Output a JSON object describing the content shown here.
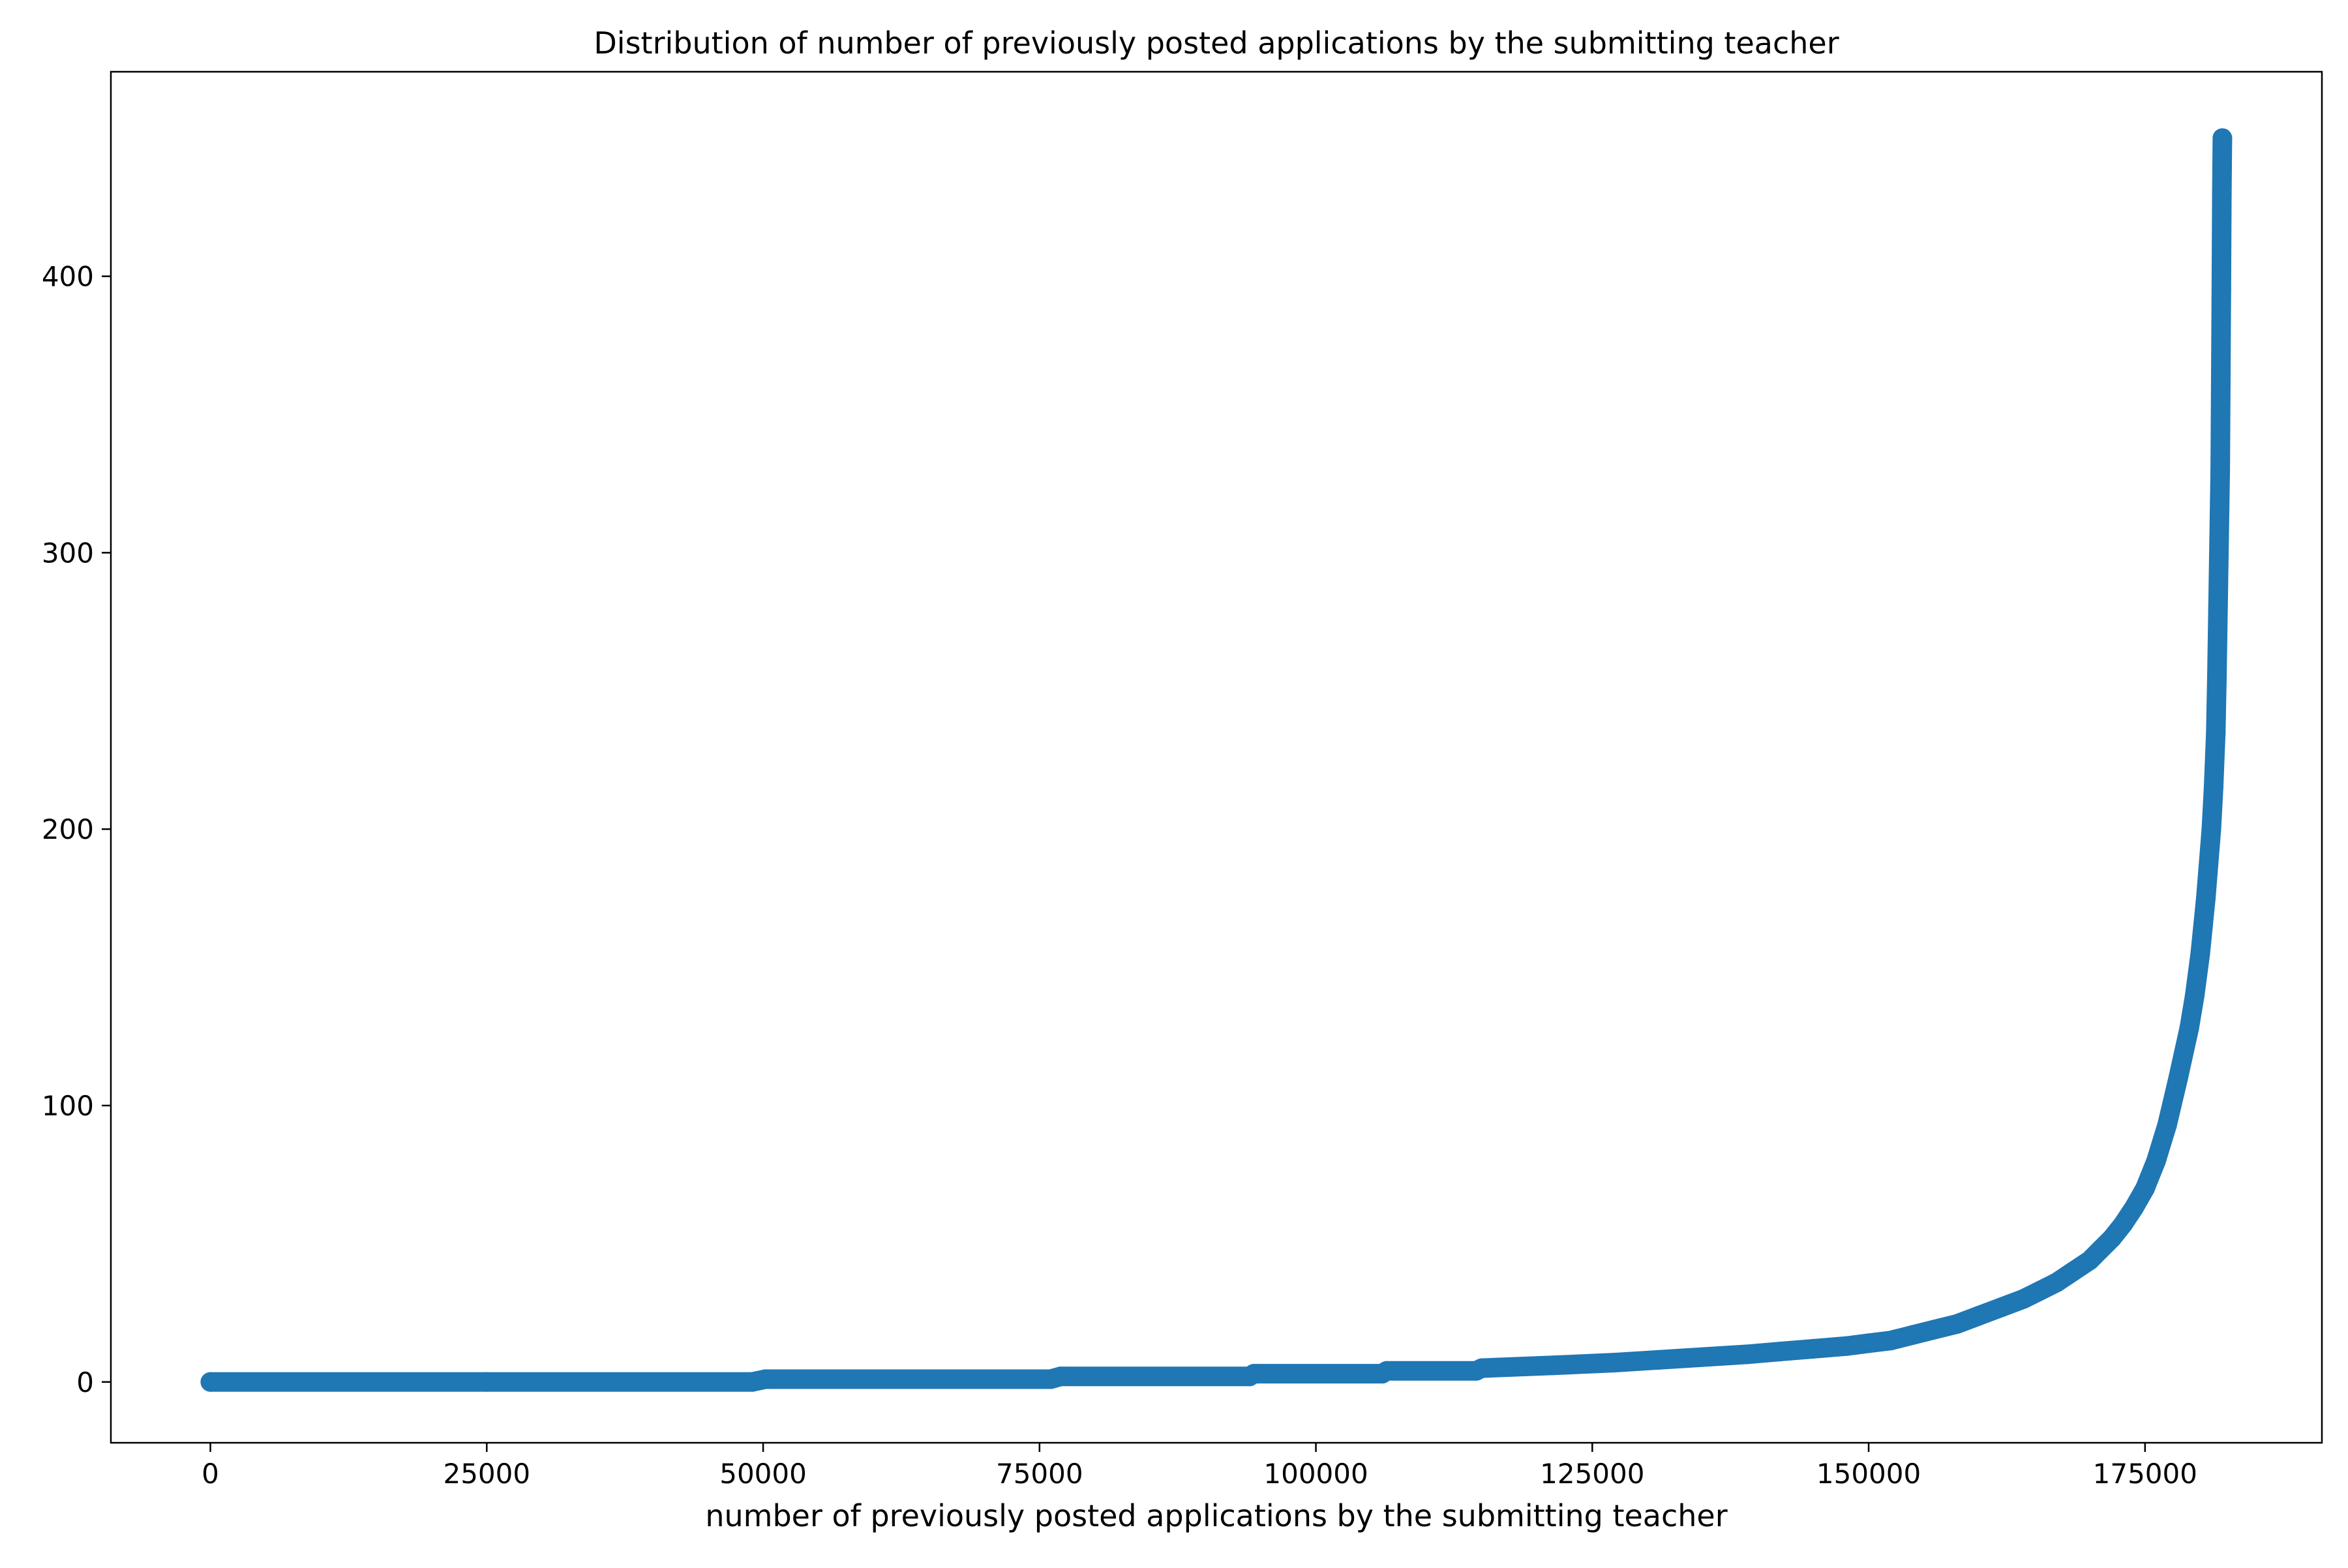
{
  "chart_data": {
    "type": "scatter",
    "title": "Distribution of number of previously posted applications by the submitting teacher",
    "xlabel": "number of previously posted applications by the submitting teacher",
    "ylabel": "",
    "xlim": [
      -9000,
      191000
    ],
    "ylim": [
      -22,
      474
    ],
    "xticks": [
      0,
      25000,
      50000,
      75000,
      100000,
      125000,
      150000,
      175000
    ],
    "xtick_labels": [
      "0",
      "25000",
      "50000",
      "75000",
      "100000",
      "125000",
      "150000",
      "175000"
    ],
    "yticks": [
      0,
      100,
      200,
      300,
      400
    ],
    "ytick_labels": [
      "0",
      "100",
      "200",
      "300",
      "400"
    ],
    "grid": false,
    "legend": "none",
    "series": [
      {
        "color": "#1f77b4",
        "x": [
          0,
          25000,
          49000,
          50200,
          76000,
          76900,
          94000,
          94400,
          106000,
          106400,
          114500,
          115000,
          121500,
          127000,
          131000,
          135000,
          139000,
          142000,
          145000,
          148000,
          150000,
          152000,
          154000,
          156000,
          158000,
          160000,
          162000,
          164000,
          165500,
          167000,
          168500,
          170000,
          171000,
          172000,
          173000,
          174000,
          175000,
          176000,
          177000,
          178000,
          179000,
          179500,
          180000,
          180500,
          181000,
          181200,
          181400,
          181500,
          181600,
          181700,
          181800,
          181850,
          181900,
          181950,
          182000
        ],
        "y": [
          0,
          0,
          0,
          1,
          1,
          2,
          2,
          3,
          3,
          4,
          4,
          5,
          6,
          7,
          8,
          9,
          10,
          11,
          12,
          13,
          14,
          15,
          17,
          19,
          21,
          24,
          27,
          30,
          33,
          36,
          40,
          44,
          48,
          52,
          57,
          63,
          70,
          80,
          93,
          110,
          128,
          140,
          155,
          175,
          200,
          215,
          235,
          255,
          280,
          305,
          330,
          360,
          395,
          430,
          450
        ]
      }
    ]
  }
}
